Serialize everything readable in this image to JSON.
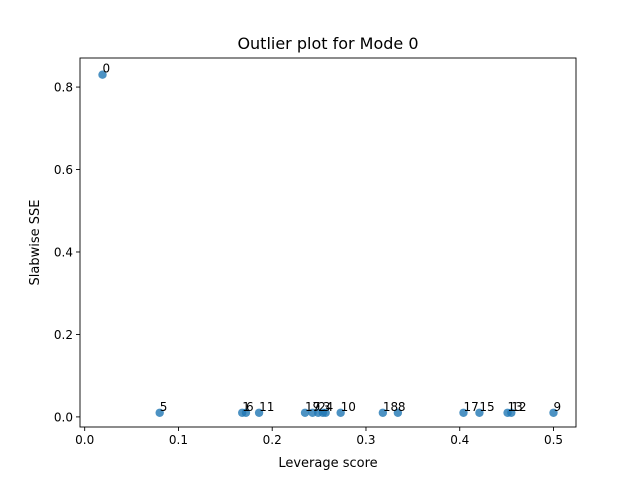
{
  "chart_data": {
    "type": "scatter",
    "title": "Outlier plot for Mode 0",
    "xlabel": "Leverage score",
    "ylabel": "Slabwise SSE",
    "xlim": [
      -0.005,
      0.524
    ],
    "ylim": [
      -0.0245,
      0.8705
    ],
    "xticks": [
      0.0,
      0.1,
      0.2,
      0.3,
      0.4,
      0.5
    ],
    "xtick_labels": [
      "0.0",
      "0.1",
      "0.2",
      "0.3",
      "0.4",
      "0.5"
    ],
    "yticks": [
      0.0,
      0.2,
      0.4,
      0.6,
      0.8
    ],
    "ytick_labels": [
      "0.0",
      "0.2",
      "0.4",
      "0.6",
      "0.8"
    ],
    "grid": false,
    "marker_color": "#1f77b4",
    "marker_alpha": 0.8,
    "points": [
      {
        "label": "0",
        "x": 0.019,
        "y": 0.83
      },
      {
        "label": "5",
        "x": 0.08,
        "y": 0.01
      },
      {
        "label": "1",
        "x": 0.168,
        "y": 0.01
      },
      {
        "label": "6",
        "x": 0.172,
        "y": 0.01
      },
      {
        "label": "11",
        "x": 0.186,
        "y": 0.01
      },
      {
        "label": "19",
        "x": 0.235,
        "y": 0.01
      },
      {
        "label": "7",
        "x": 0.243,
        "y": 0.01
      },
      {
        "label": "2",
        "x": 0.249,
        "y": 0.01
      },
      {
        "label": "3",
        "x": 0.254,
        "y": 0.01
      },
      {
        "label": "4",
        "x": 0.257,
        "y": 0.01
      },
      {
        "label": "10",
        "x": 0.273,
        "y": 0.01
      },
      {
        "label": "18",
        "x": 0.318,
        "y": 0.01
      },
      {
        "label": "8",
        "x": 0.334,
        "y": 0.01
      },
      {
        "label": "17",
        "x": 0.404,
        "y": 0.01
      },
      {
        "label": "15",
        "x": 0.421,
        "y": 0.01
      },
      {
        "label": "13",
        "x": 0.451,
        "y": 0.01
      },
      {
        "label": "12",
        "x": 0.455,
        "y": 0.01
      },
      {
        "label": "9",
        "x": 0.5,
        "y": 0.01
      }
    ]
  }
}
